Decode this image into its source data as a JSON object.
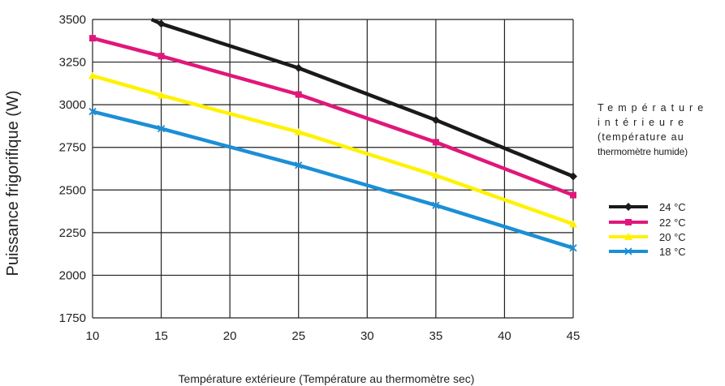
{
  "chart_data": {
    "type": "line",
    "xlabel": "Température extérieure (Température au thermomètre sec)",
    "ylabel": "Puissance frigorifique (W)",
    "xlim": [
      10,
      45
    ],
    "ylim": [
      1750,
      3500
    ],
    "xticks": [
      "10",
      "15",
      "20",
      "25",
      "30",
      "35",
      "40",
      "45"
    ],
    "yticks": [
      "1750",
      "2000",
      "2250",
      "2500",
      "2750",
      "3000",
      "3250",
      "3500"
    ],
    "grid": true,
    "legend_position": "right",
    "legend_title_lines": [
      "Température",
      "intérieure",
      "(température au",
      "thermomètre humide)"
    ],
    "series": [
      {
        "name": "24 °C",
        "color": "#1a1a1a",
        "marker": "diamond",
        "x": [
          14.3,
          15,
          25,
          35,
          45
        ],
        "y": [
          3500,
          3475,
          3215,
          2910,
          2580
        ]
      },
      {
        "name": "22 °C",
        "color": "#e0177a",
        "marker": "square",
        "x": [
          10,
          15,
          25,
          35,
          45
        ],
        "y": [
          3390,
          3285,
          3060,
          2780,
          2470
        ]
      },
      {
        "name": "20 °C",
        "color": "#fff200",
        "marker": "triangle",
        "x": [
          10,
          15,
          25,
          35,
          45
        ],
        "y": [
          3170,
          3055,
          2840,
          2585,
          2300
        ]
      },
      {
        "name": "18 °C",
        "color": "#1b8fd6",
        "marker": "cross",
        "x": [
          10,
          15,
          25,
          35,
          45
        ],
        "y": [
          2960,
          2860,
          2645,
          2410,
          2160
        ]
      }
    ]
  }
}
